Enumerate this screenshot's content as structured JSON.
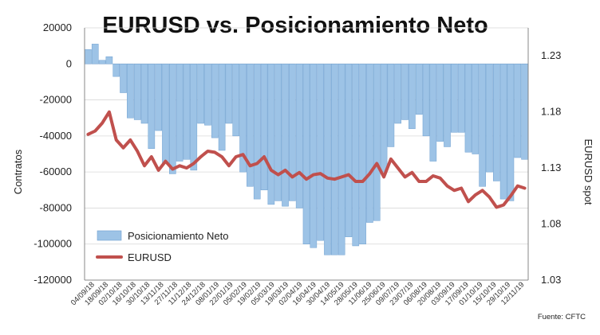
{
  "chart_data": {
    "type": "bar",
    "title": "EURUSD vs. Posicionamiento Neto",
    "ylabel_left": "Contratos",
    "ylabel_right": "EURUSD spot",
    "ylim_left": [
      -120000,
      20000
    ],
    "ylim_right": [
      1.03,
      1.255
    ],
    "yticks_left": [
      20000,
      0,
      -20000,
      -40000,
      -60000,
      -80000,
      -100000,
      -120000
    ],
    "ytick_labels_left": [
      "20000",
      "0",
      "-20000",
      "-40000",
      "-60000",
      "-80000",
      "-100000",
      "-120000"
    ],
    "yticks_right": [
      1.23,
      1.18,
      1.13,
      1.08,
      1.03
    ],
    "ytick_labels_right": [
      "1.23",
      "1.18",
      "1.13",
      "1.08",
      "1.03"
    ],
    "x_tick_labels": [
      "04/09/18",
      "18/09/18",
      "02/10/18",
      "16/10/18",
      "30/10/18",
      "13/11/18",
      "27/11/18",
      "11/12/18",
      "24/12/18",
      "08/01/19",
      "22/01/19",
      "05/02/19",
      "19/02/19",
      "05/03/19",
      "19/03/19",
      "02/04/19",
      "16/04/19",
      "30/04/19",
      "14/05/19",
      "28/05/19",
      "11/06/19",
      "25/06/19",
      "09/07/19",
      "23/07/19",
      "06/08/19",
      "20/08/19",
      "03/09/19",
      "17/09/19",
      "01/10/19",
      "15/10/19",
      "29/10/19",
      "12/11/19"
    ],
    "series": [
      {
        "name": "Posicionamiento Neto",
        "type": "bar",
        "color": "#9dc3e6",
        "values": [
          8000,
          11000,
          2000,
          4000,
          -7000,
          -16000,
          -30000,
          -31000,
          -33000,
          -47000,
          -37000,
          -55000,
          -61000,
          -54000,
          -53000,
          -59000,
          -33000,
          -34000,
          -41000,
          -48000,
          -33000,
          -40000,
          -60000,
          -68000,
          -75000,
          -70000,
          -78000,
          -76000,
          -79000,
          -76000,
          -80000,
          -100000,
          -102000,
          -98000,
          -106000,
          -106000,
          -106000,
          -96000,
          -101000,
          -100000,
          -88000,
          -87000,
          -60000,
          -46000,
          -33000,
          -31000,
          -36000,
          -28000,
          -40000,
          -54000,
          -43000,
          -46000,
          -38000,
          -38000,
          -49000,
          -50000,
          -68000,
          -60000,
          -65000,
          -75000,
          -76000,
          -52000,
          -53000
        ]
      },
      {
        "name": "EURUSD",
        "type": "line",
        "color": "#c0504d",
        "values": [
          1.16,
          1.163,
          1.17,
          1.18,
          1.155,
          1.148,
          1.155,
          1.145,
          1.132,
          1.14,
          1.128,
          1.136,
          1.129,
          1.132,
          1.13,
          1.134,
          1.14,
          1.145,
          1.144,
          1.14,
          1.132,
          1.14,
          1.142,
          1.132,
          1.134,
          1.14,
          1.128,
          1.124,
          1.128,
          1.122,
          1.126,
          1.12,
          1.124,
          1.125,
          1.121,
          1.12,
          1.122,
          1.124,
          1.118,
          1.118,
          1.125,
          1.134,
          1.122,
          1.138,
          1.13,
          1.122,
          1.126,
          1.118,
          1.118,
          1.123,
          1.121,
          1.114,
          1.11,
          1.112,
          1.1,
          1.106,
          1.11,
          1.104,
          1.095,
          1.097,
          1.105,
          1.114,
          1.112
        ]
      }
    ],
    "legend": [
      "Posicionamiento Neto",
      "EURUSD"
    ],
    "legend_position": "bottom-left",
    "source": "Fuente: CFTC",
    "grid": true
  }
}
